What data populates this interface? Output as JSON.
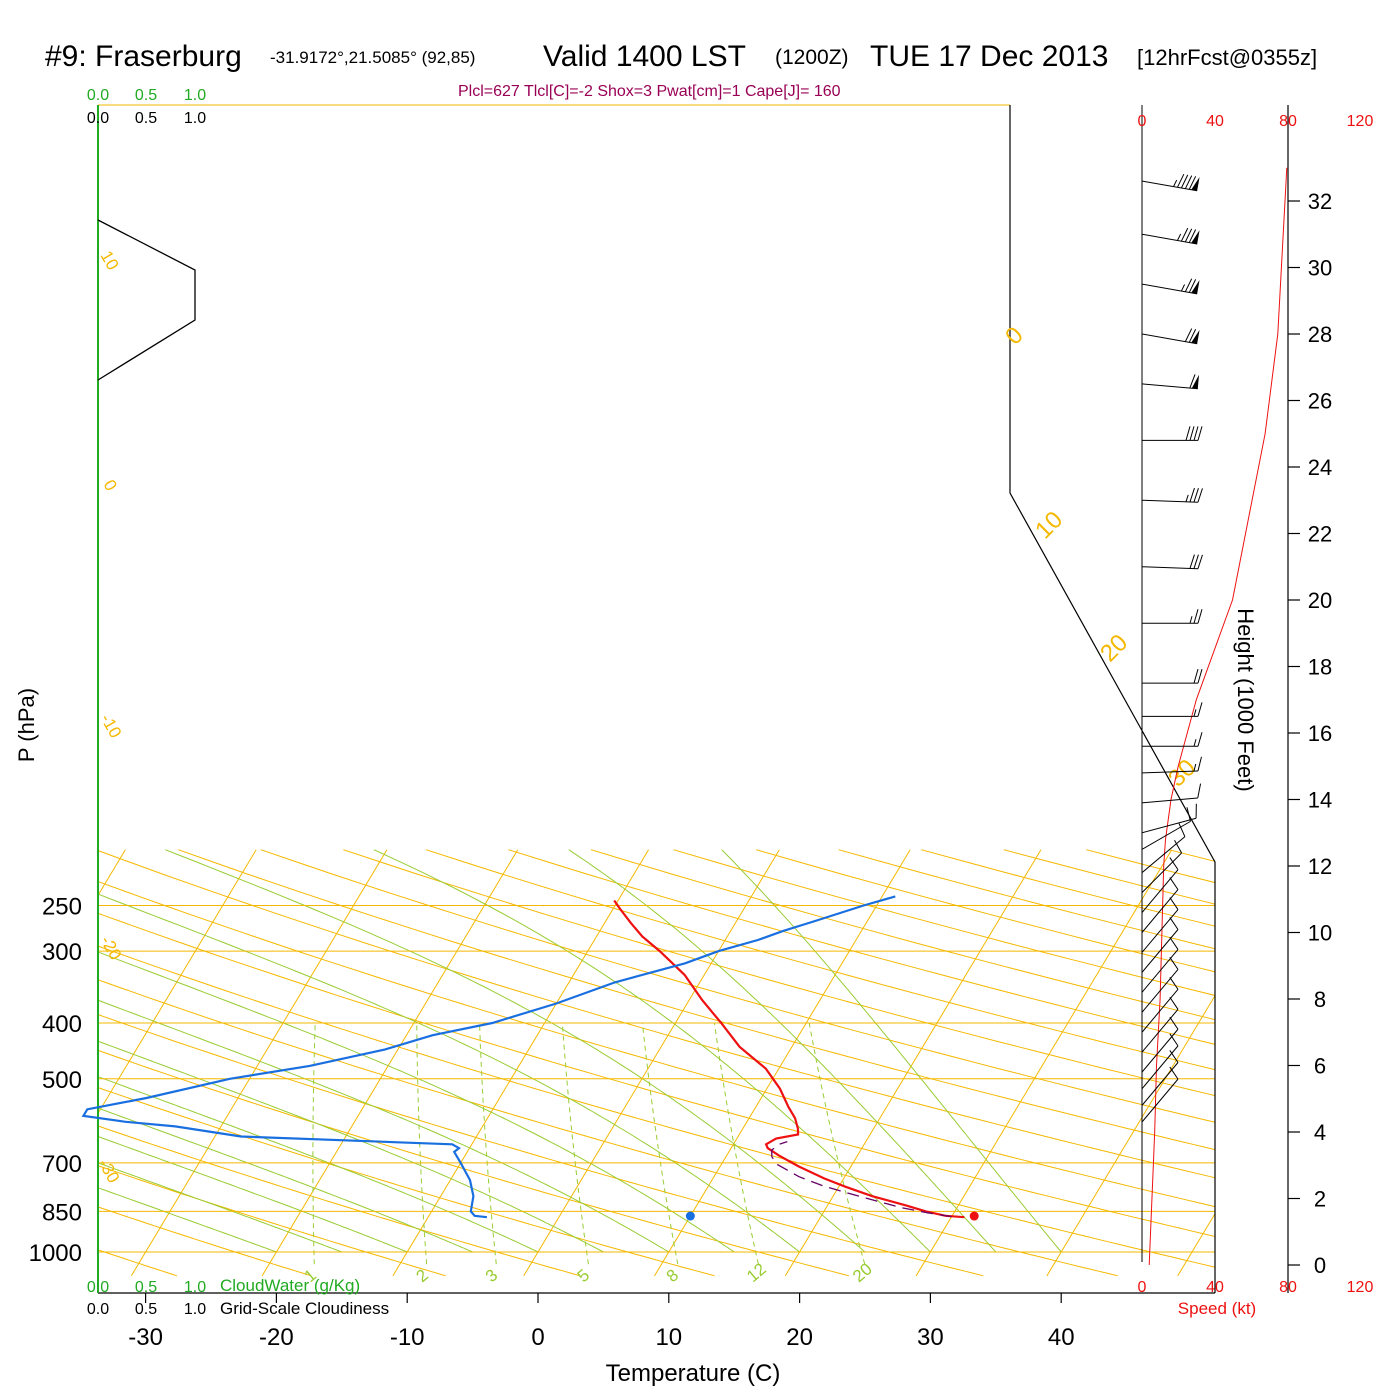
{
  "header": {
    "station": "#9: Fraserburg",
    "coords": "-31.9172°,21.5085° (92,85)",
    "valid": "Valid 1400 LST",
    "zulu": "(1200Z)",
    "date": "TUE 17 Dec 2013",
    "forecast": "[12hrFcst@0355z]",
    "indices": "Plcl=627 Tlcl[C]=-2 Shox=3 Pwat[cm]=1 Cape[J]= 160"
  },
  "colors": {
    "isotherm": "#f5b800",
    "mixing_ratio": "#99cc33",
    "moist_adiabat": "#99cc33",
    "temperature": "#ee1111",
    "dewpoint": "#1a6fe0",
    "parcel": "#660066",
    "scale_green": "#22aa22",
    "scale_red": "#ee1111",
    "title_indices": "#990055"
  },
  "chart_data": {
    "type": "line",
    "xlabel": "Temperature (C)",
    "ylabel": "P (hPa)",
    "right_label": "Height (1000 Feet)",
    "x_ticks": [
      "-30",
      "-20",
      "-10",
      "0",
      "10",
      "20",
      "30",
      "40"
    ],
    "pressure_levels": [
      {
        "p": 250,
        "label": "250"
      },
      {
        "p": 300,
        "label": "300"
      },
      {
        "p": 400,
        "label": "400"
      },
      {
        "p": 500,
        "label": "500"
      },
      {
        "p": 700,
        "label": "700"
      },
      {
        "p": 850,
        "label": "850"
      },
      {
        "p": 1000,
        "label": "1000"
      }
    ],
    "height_ticks": [
      "0",
      "2",
      "4",
      "6",
      "8",
      "10",
      "12",
      "14",
      "16",
      "18",
      "20",
      "22",
      "24",
      "26",
      "28",
      "30",
      "32"
    ],
    "isotherm_labels": [
      "10",
      "0",
      "-10",
      "-20",
      "-30",
      "0",
      "10",
      "20",
      "30"
    ],
    "mixing_ratio_labels": [
      "1",
      "2",
      "3",
      "5",
      "8",
      "12",
      "20"
    ],
    "cloud_scale": {
      "top_green": [
        "0.0",
        "0.5",
        "1.0"
      ],
      "top_black": [
        "0.0",
        "0.5",
        "1.0"
      ],
      "bottom_green": [
        "0.0",
        "0.5",
        "1.0"
      ],
      "bottom_green_label": "CloudWater (g/Kg)",
      "bottom_black": [
        "0.0",
        "0.5",
        "1.0"
      ],
      "bottom_black_label": "Grid-Scale Cloudiness"
    },
    "speed_scale": {
      "top": [
        "0",
        "40",
        "80",
        "120"
      ],
      "bottom": [
        "0",
        "40",
        "80",
        "120"
      ],
      "label": "Speed (kt)"
    },
    "series": [
      {
        "name": "temperature",
        "points": [
          [
            31.0,
            870
          ],
          [
            29.5,
            865
          ],
          [
            27.8,
            850
          ],
          [
            26.0,
            830
          ],
          [
            23.0,
            800
          ],
          [
            20.5,
            770
          ],
          [
            18.5,
            745
          ],
          [
            16.0,
            710
          ],
          [
            14.0,
            680
          ],
          [
            12.8,
            660
          ],
          [
            12.5,
            650
          ],
          [
            13.0,
            635
          ],
          [
            14.5,
            625
          ],
          [
            14.2,
            610
          ],
          [
            13.5,
            585
          ],
          [
            12.5,
            560
          ],
          [
            11.0,
            520
          ],
          [
            9.0,
            480
          ],
          [
            6.0,
            440
          ],
          [
            3.5,
            400
          ],
          [
            1.0,
            365
          ],
          [
            -1.5,
            330
          ],
          [
            -4.5,
            300
          ],
          [
            -6.5,
            283
          ],
          [
            -8.0,
            268
          ],
          [
            -9.5,
            253
          ],
          [
            -10.3,
            245
          ]
        ]
      },
      {
        "name": "dewpoint",
        "points": [
          [
            -5.5,
            870
          ],
          [
            -6.5,
            865
          ],
          [
            -7.0,
            850
          ],
          [
            -7.5,
            800
          ],
          [
            -8.5,
            750
          ],
          [
            -10.0,
            700
          ],
          [
            -11.0,
            670
          ],
          [
            -10.8,
            660
          ],
          [
            -11.5,
            650
          ],
          [
            -28.0,
            630
          ],
          [
            -33.5,
            605
          ],
          [
            -37.5,
            594
          ],
          [
            -41.0,
            580
          ],
          [
            -41.0,
            565
          ],
          [
            -37.0,
            540
          ],
          [
            -31.5,
            500
          ],
          [
            -26.0,
            475
          ],
          [
            -21.0,
            445
          ],
          [
            -18.0,
            420
          ],
          [
            -14.0,
            400
          ],
          [
            -10.0,
            370
          ],
          [
            -6.5,
            340
          ],
          [
            -2.0,
            315
          ],
          [
            0,
            300
          ],
          [
            2.5,
            287
          ],
          [
            4.0,
            277
          ],
          [
            6.0,
            266
          ],
          [
            9.0,
            250
          ],
          [
            11.0,
            241
          ]
        ]
      },
      {
        "name": "parcel",
        "points": [
          [
            30.0,
            868
          ],
          [
            28.0,
            855
          ],
          [
            25.8,
            838
          ],
          [
            23.5,
            815
          ],
          [
            21.0,
            790
          ],
          [
            18.8,
            768
          ],
          [
            16.5,
            740
          ],
          [
            14.3,
            705
          ],
          [
            13.5,
            683
          ],
          [
            13.2,
            665
          ],
          [
            13.5,
            650
          ],
          [
            14.0,
            643
          ]
        ]
      }
    ],
    "surface_points": [
      {
        "name": "surface-dewpoint",
        "t": 10.0,
        "p": 866
      },
      {
        "name": "surface-temperature",
        "t": 31.7,
        "p": 866
      }
    ],
    "speed_profile": [
      [
        4,
        0
      ],
      [
        7,
        4
      ],
      [
        8,
        6
      ],
      [
        10,
        8
      ],
      [
        11,
        10
      ],
      [
        12,
        12
      ],
      [
        13,
        12.8
      ],
      [
        16,
        14
      ],
      [
        20,
        15
      ],
      [
        30,
        17
      ],
      [
        50,
        20
      ],
      [
        68,
        25
      ],
      [
        75,
        28
      ],
      [
        80,
        33
      ]
    ],
    "wind_barbs": [
      {
        "h": 32.6,
        "speed": 95,
        "dir": 260
      },
      {
        "h": 31.0,
        "speed": 85,
        "dir": 260
      },
      {
        "h": 29.5,
        "speed": 75,
        "dir": 260
      },
      {
        "h": 28.0,
        "speed": 70,
        "dir": 260
      },
      {
        "h": 26.5,
        "speed": 60,
        "dir": 265
      },
      {
        "h": 24.8,
        "speed": 40,
        "dir": 270
      },
      {
        "h": 23.0,
        "speed": 35,
        "dir": 268
      },
      {
        "h": 21.0,
        "speed": 30,
        "dir": 268
      },
      {
        "h": 19.3,
        "speed": 25,
        "dir": 270
      },
      {
        "h": 17.5,
        "speed": 20,
        "dir": 270
      },
      {
        "h": 16.5,
        "speed": 15,
        "dir": 270
      },
      {
        "h": 15.6,
        "speed": 15,
        "dir": 270
      },
      {
        "h": 14.8,
        "speed": 15,
        "dir": 272
      },
      {
        "h": 13.9,
        "speed": 10,
        "dir": 275
      },
      {
        "h": 13.0,
        "speed": 10,
        "dir": 285
      },
      {
        "h": 12.5,
        "speed": 10,
        "dir": 300
      },
      {
        "h": 11.8,
        "speed": 10,
        "dir": 310
      },
      {
        "h": 11.2,
        "speed": 10,
        "dir": 315
      },
      {
        "h": 10.6,
        "speed": 10,
        "dir": 320
      },
      {
        "h": 10.0,
        "speed": 10,
        "dir": 320
      },
      {
        "h": 9.4,
        "speed": 10,
        "dir": 320
      },
      {
        "h": 8.8,
        "speed": 10,
        "dir": 320
      },
      {
        "h": 8.2,
        "speed": 10,
        "dir": 320
      },
      {
        "h": 7.6,
        "speed": 10,
        "dir": 320
      },
      {
        "h": 7.0,
        "speed": 10,
        "dir": 320
      },
      {
        "h": 6.4,
        "speed": 10,
        "dir": 320
      },
      {
        "h": 5.8,
        "speed": 10,
        "dir": 320
      },
      {
        "h": 5.3,
        "speed": 10,
        "dir": 320
      },
      {
        "h": 4.8,
        "speed": 10,
        "dir": 320
      },
      {
        "h": 4.3,
        "speed": 10,
        "dir": 320
      }
    ]
  }
}
